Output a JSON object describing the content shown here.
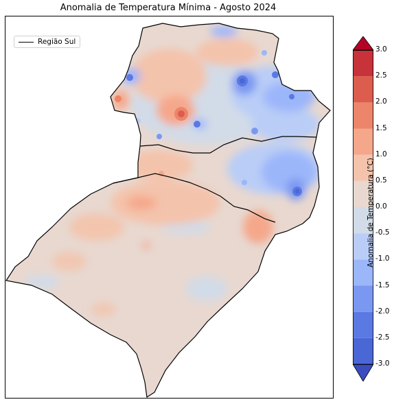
{
  "chart_data": {
    "type": "heatmap",
    "title": "Anomalia de Temperatura Mínima - Agosto 2024",
    "legend": [
      "Região Sul"
    ],
    "legend_position": "top-left",
    "colorbar": {
      "label": "Anomalia de Temperatura (°C)",
      "min": -3.0,
      "max": 3.0,
      "extend": "both",
      "ticks": [
        "3.0",
        "2.5",
        "2.0",
        "1.5",
        "1.0",
        "0.5",
        "0.0",
        "-0.5",
        "-1.0",
        "-1.5",
        "-2.0",
        "-2.5",
        "-3.0"
      ],
      "levels": [
        {
          "from": -3.0,
          "to": -2.5,
          "color": "#4a67d6"
        },
        {
          "from": -2.5,
          "to": -2.0,
          "color": "#5b79e2"
        },
        {
          "from": -2.0,
          "to": -1.5,
          "color": "#7a98f2"
        },
        {
          "from": -1.5,
          "to": -1.0,
          "color": "#9cb6fa"
        },
        {
          "from": -1.0,
          "to": -0.5,
          "color": "#b9cdf7"
        },
        {
          "from": -0.5,
          "to": 0.0,
          "color": "#d2dbe8"
        },
        {
          "from": 0.0,
          "to": 0.5,
          "color": "#e8d8d0"
        },
        {
          "from": 0.5,
          "to": 1.0,
          "color": "#f4c3ab"
        },
        {
          "from": 1.0,
          "to": 1.5,
          "color": "#f5a78b"
        },
        {
          "from": 1.5,
          "to": 2.0,
          "color": "#ec8569"
        },
        {
          "from": 2.0,
          "to": 2.5,
          "color": "#dc5c4e"
        },
        {
          "from": 2.5,
          "to": 3.0,
          "color": "#c8323a"
        }
      ],
      "under_color": "#3b4cc0",
      "over_color": "#b40426"
    }
  }
}
